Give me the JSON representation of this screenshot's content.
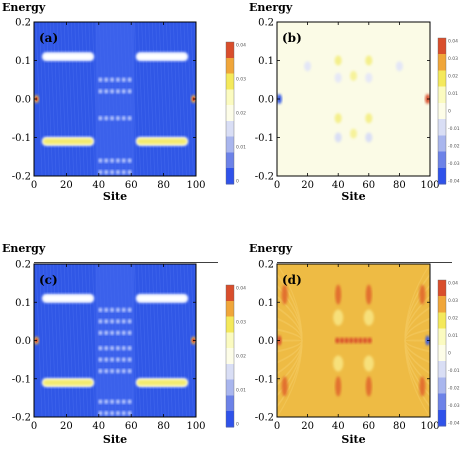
{
  "chart_data": [
    {
      "type": "heatmap",
      "panel_label": "(a)",
      "xlabel": "Site",
      "ylabel": "Energy",
      "xlim": [
        0,
        100
      ],
      "ylim": [
        -0.2,
        0.2
      ],
      "xticks": [
        "0",
        "20",
        "40",
        "60",
        "80",
        "100"
      ],
      "yticks": [
        "0.2",
        "0.1",
        "0.0",
        "-0.1",
        "-0.2"
      ],
      "colorbar": {
        "ticks": [
          "0.04",
          "0.03",
          "0.02",
          "0.01",
          "0"
        ],
        "colors": [
          "#d94e2c",
          "#f0a63a",
          "#f4e95b",
          "#fbfbc0",
          "#fdfde8",
          "#d9def5",
          "#a9b6ee",
          "#6c82e8",
          "#2f52ea"
        ]
      },
      "background": "#3057e6",
      "bands": [
        {
          "energy": 0.11,
          "x_ranges": [
            [
              5,
              37
            ],
            [
              63,
              95
            ]
          ],
          "color": "#ffffff"
        },
        {
          "energy": -0.11,
          "x_ranges": [
            [
              5,
              37
            ],
            [
              63,
              95
            ]
          ],
          "color": "#f3ea6e"
        }
      ],
      "center_states": [
        0.05,
        0.02,
        -0.05,
        -0.16,
        -0.19
      ]
    },
    {
      "type": "heatmap",
      "panel_label": "(b)",
      "xlabel": "Site",
      "ylabel": "Energy",
      "xlim": [
        0,
        100
      ],
      "ylim": [
        -0.2,
        0.2
      ],
      "xticks": [
        "0",
        "20",
        "40",
        "60",
        "80",
        "100"
      ],
      "yticks": [
        "0.2",
        "0.1",
        "0.0",
        "-0.1",
        "-0.2"
      ],
      "colorbar": {
        "ticks": [
          "0.04",
          "0.03",
          "0.02",
          "0.01",
          "0",
          "-0.01",
          "-0.02",
          "-0.03",
          "-0.04"
        ],
        "colors": [
          "#d94e2c",
          "#f0a63a",
          "#f4e95b",
          "#fbfbc0",
          "#fdfde8",
          "#d9def5",
          "#a9b6ee",
          "#6c82e8",
          "#2f52ea"
        ]
      },
      "background": "#fbfbe6"
    },
    {
      "type": "heatmap",
      "panel_label": "(c)",
      "xlabel": "Site",
      "ylabel": "Energy",
      "xlim": [
        0,
        100
      ],
      "ylim": [
        -0.2,
        0.2
      ],
      "xticks": [
        "0",
        "20",
        "40",
        "60",
        "80",
        "100"
      ],
      "yticks": [
        "0.2",
        "0.1",
        "0.0",
        "-0.1",
        "-0.2"
      ],
      "colorbar": {
        "ticks": [
          "0.04",
          "0.03",
          "0.02",
          "0.01",
          "0"
        ],
        "colors": [
          "#d94e2c",
          "#f0a63a",
          "#f4e95b",
          "#fbfbc0",
          "#fdfde8",
          "#d9def5",
          "#a9b6ee",
          "#6c82e8",
          "#2f52ea"
        ]
      },
      "background": "#3057e6",
      "bands": [
        {
          "energy": 0.11,
          "x_ranges": [
            [
              5,
              37
            ],
            [
              63,
              95
            ]
          ],
          "color": "#ffffff"
        },
        {
          "energy": -0.11,
          "x_ranges": [
            [
              5,
              37
            ],
            [
              63,
              95
            ]
          ],
          "color": "#f3ea6e"
        }
      ],
      "center_states": [
        0.08,
        0.05,
        0.02,
        -0.02,
        -0.05,
        -0.08,
        -0.16,
        -0.19
      ]
    },
    {
      "type": "heatmap",
      "panel_label": "(d)",
      "xlabel": "Site",
      "ylabel": "Energy",
      "xlim": [
        0,
        100
      ],
      "ylim": [
        -0.2,
        0.2
      ],
      "xticks": [
        "0",
        "20",
        "40",
        "60",
        "80",
        "100"
      ],
      "yticks": [
        "0.2",
        "0.1",
        "0.0",
        "-0.1",
        "-0.2"
      ],
      "colorbar": {
        "ticks": [
          "0.04",
          "0.03",
          "0.02",
          "0.01",
          "0",
          "-0.01",
          "-0.02",
          "-0.03",
          "-0.04"
        ],
        "colors": [
          "#d94e2c",
          "#f0a63a",
          "#f4e95b",
          "#fbfbc0",
          "#fdfde8",
          "#d9def5",
          "#a9b6ee",
          "#6c82e8",
          "#2f52ea"
        ]
      },
      "background": "#eebb44",
      "center_band": {
        "energy": 0.0,
        "x_range": [
          38,
          62
        ],
        "color": "#d94e2c"
      }
    }
  ]
}
